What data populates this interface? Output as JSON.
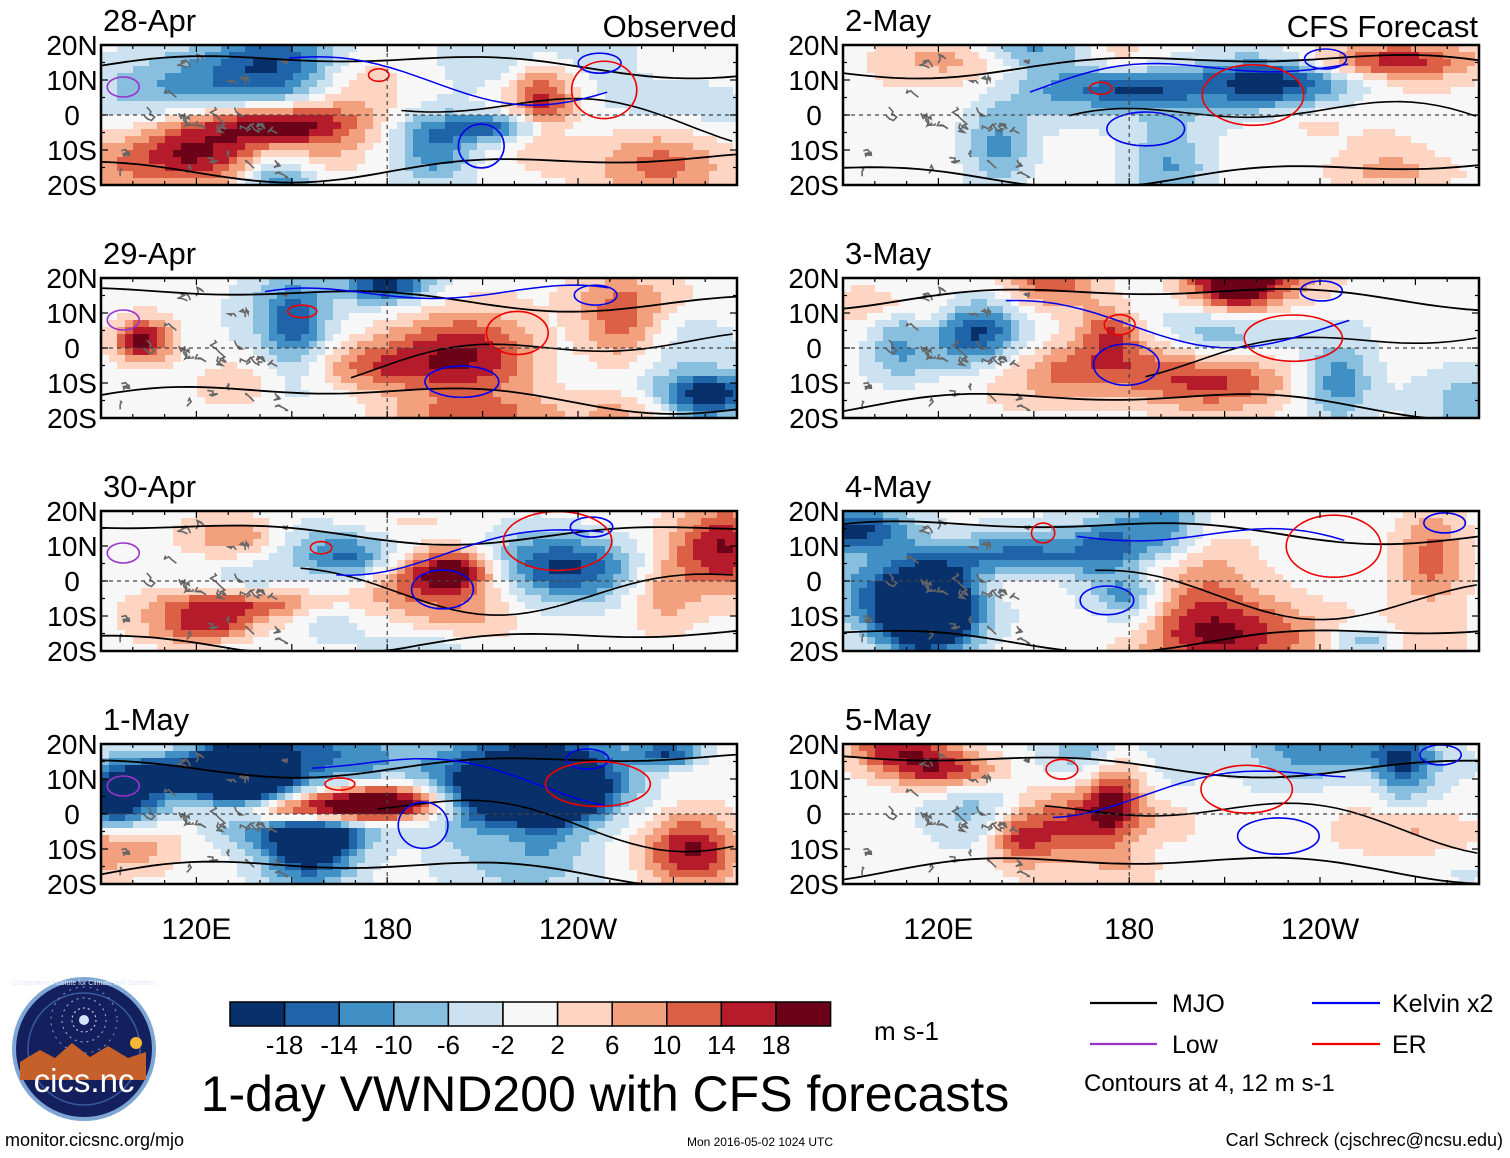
{
  "header": {
    "observed_label": "Observed",
    "forecast_label": "CFS Forecast"
  },
  "panels": [
    {
      "date": "28-Apr",
      "group": "observed"
    },
    {
      "date": "29-Apr",
      "group": "observed"
    },
    {
      "date": "30-Apr",
      "group": "observed"
    },
    {
      "date": "1-May",
      "group": "observed"
    },
    {
      "date": "2-May",
      "group": "forecast"
    },
    {
      "date": "3-May",
      "group": "forecast"
    },
    {
      "date": "4-May",
      "group": "forecast"
    },
    {
      "date": "5-May",
      "group": "forecast"
    }
  ],
  "chart_data": {
    "type": "heatmap",
    "title": "1-day VWND200 with CFS forecasts",
    "variable": "VWND200",
    "units": "m s-1",
    "x_ticks": [
      "120E",
      "180",
      "120W"
    ],
    "y_ticks": [
      "20N",
      "10N",
      "0",
      "10S",
      "20S"
    ],
    "colorbar": {
      "boundaries": [
        -18,
        -14,
        -10,
        -6,
        -2,
        2,
        6,
        10,
        14,
        18
      ],
      "tick_labels": [
        "-18",
        "-14",
        "-10",
        "-6",
        "-2",
        "2",
        "6",
        "10",
        "14",
        "18"
      ],
      "colors": [
        "#08306b",
        "#1f64a8",
        "#4090c5",
        "#88bede",
        "#cde2f0",
        "#f7f7f7",
        "#fdd5c2",
        "#f3a07e",
        "#db6046",
        "#b51b2a",
        "#6b0218"
      ]
    },
    "legend": [
      {
        "label": "MJO",
        "color": "#000000"
      },
      {
        "label": "Kelvin x2",
        "color": "#0000ee"
      },
      {
        "label": "Low",
        "color": "#9933cc"
      },
      {
        "label": "ER",
        "color": "#ee0000"
      }
    ],
    "contour_note": "Contours at 4, 12 m s-1"
  },
  "footer": {
    "left": "monitor.cicsnc.org/mjo",
    "center": "Mon 2016-05-02 1024 UTC",
    "right": "Carl Schreck (cjschrec@ncsu.edu)"
  },
  "logo": {
    "text": "cics.nc",
    "ring_text": "Cooperative Institute for Climate and Satellites"
  }
}
